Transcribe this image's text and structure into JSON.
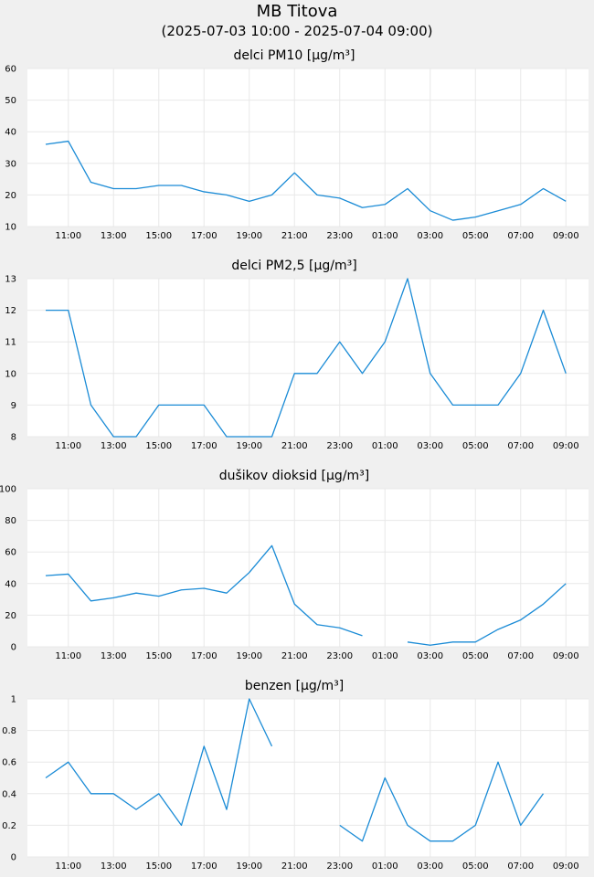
{
  "header": {
    "title": "MB Titova",
    "subtitle": "(2025-07-03 10:00 - 2025-07-04 09:00)"
  },
  "colors": {
    "line": "#1a8bd6",
    "plot_bg": "#ffffff",
    "page_bg": "#f0f0f0",
    "grid": "#e8e8e8"
  },
  "chart_data": [
    {
      "type": "line",
      "title": "delci PM10 [µg/m³]",
      "x": [
        "10:00",
        "11:00",
        "12:00",
        "13:00",
        "14:00",
        "15:00",
        "16:00",
        "17:00",
        "18:00",
        "19:00",
        "20:00",
        "21:00",
        "22:00",
        "23:00",
        "00:00",
        "01:00",
        "02:00",
        "03:00",
        "04:00",
        "05:00",
        "06:00",
        "07:00",
        "08:00",
        "09:00"
      ],
      "x_tick_labels": [
        "11:00",
        "13:00",
        "15:00",
        "17:00",
        "19:00",
        "21:00",
        "23:00",
        "01:00",
        "03:00",
        "05:00",
        "07:00",
        "09:00"
      ],
      "y_tick_labels": [
        "10",
        "20",
        "30",
        "40",
        "50",
        "60"
      ],
      "ylim": [
        10,
        60
      ],
      "grid": true,
      "series": [
        {
          "values": [
            36,
            37,
            24,
            22,
            22,
            23,
            23,
            21,
            20,
            18,
            20,
            27,
            20,
            19,
            16,
            17,
            22,
            15,
            12,
            13,
            15,
            17,
            22,
            18
          ]
        }
      ]
    },
    {
      "type": "line",
      "title": "delci PM2,5 [µg/m³]",
      "x": [
        "10:00",
        "11:00",
        "12:00",
        "13:00",
        "14:00",
        "15:00",
        "16:00",
        "17:00",
        "18:00",
        "19:00",
        "20:00",
        "21:00",
        "22:00",
        "23:00",
        "00:00",
        "01:00",
        "02:00",
        "03:00",
        "04:00",
        "05:00",
        "06:00",
        "07:00",
        "08:00",
        "09:00"
      ],
      "x_tick_labels": [
        "11:00",
        "13:00",
        "15:00",
        "17:00",
        "19:00",
        "21:00",
        "23:00",
        "01:00",
        "03:00",
        "05:00",
        "07:00",
        "09:00"
      ],
      "y_tick_labels": [
        "8",
        "9",
        "10",
        "11",
        "12",
        "13"
      ],
      "ylim": [
        8,
        13
      ],
      "grid": true,
      "series": [
        {
          "values": [
            12,
            12,
            9,
            8,
            8,
            9,
            9,
            9,
            8,
            8,
            8,
            10,
            10,
            11,
            10,
            11,
            13,
            10,
            9,
            9,
            9,
            10,
            12,
            10
          ]
        }
      ]
    },
    {
      "type": "line",
      "title": "dušikov dioksid [µg/m³]",
      "x": [
        "10:00",
        "11:00",
        "12:00",
        "13:00",
        "14:00",
        "15:00",
        "16:00",
        "17:00",
        "18:00",
        "19:00",
        "20:00",
        "21:00",
        "22:00",
        "23:00",
        "00:00",
        "01:00",
        "02:00",
        "03:00",
        "04:00",
        "05:00",
        "06:00",
        "07:00",
        "08:00",
        "09:00"
      ],
      "x_tick_labels": [
        "11:00",
        "13:00",
        "15:00",
        "17:00",
        "19:00",
        "21:00",
        "23:00",
        "01:00",
        "03:00",
        "05:00",
        "07:00",
        "09:00"
      ],
      "y_tick_labels": [
        "0",
        "20",
        "40",
        "60",
        "80",
        "100"
      ],
      "ylim": [
        0,
        100
      ],
      "grid": true,
      "series": [
        {
          "values": [
            45,
            46,
            29,
            31,
            34,
            32,
            36,
            37,
            34,
            47,
            64,
            27,
            14,
            12,
            7,
            null,
            3,
            1,
            3,
            3,
            11,
            17,
            27,
            40
          ]
        }
      ]
    },
    {
      "type": "line",
      "title": "benzen [µg/m³]",
      "x": [
        "10:00",
        "11:00",
        "12:00",
        "13:00",
        "14:00",
        "15:00",
        "16:00",
        "17:00",
        "18:00",
        "19:00",
        "20:00",
        "21:00",
        "22:00",
        "23:00",
        "00:00",
        "01:00",
        "02:00",
        "03:00",
        "04:00",
        "05:00",
        "06:00",
        "07:00",
        "08:00",
        "09:00"
      ],
      "x_tick_labels": [
        "11:00",
        "13:00",
        "15:00",
        "17:00",
        "19:00",
        "21:00",
        "23:00",
        "01:00",
        "03:00",
        "05:00",
        "07:00",
        "09:00"
      ],
      "y_tick_labels": [
        "0",
        "0.2",
        "0.4",
        "0.6",
        "0.8",
        "1"
      ],
      "ylim": [
        0,
        1
      ],
      "grid": true,
      "series": [
        {
          "values": [
            0.5,
            0.6,
            0.4,
            0.4,
            0.3,
            0.4,
            0.2,
            0.7,
            0.3,
            1.0,
            0.7,
            null,
            null,
            0.2,
            0.1,
            0.5,
            0.2,
            0.1,
            0.1,
            0.2,
            0.6,
            0.2,
            0.4,
            null
          ]
        }
      ]
    }
  ]
}
